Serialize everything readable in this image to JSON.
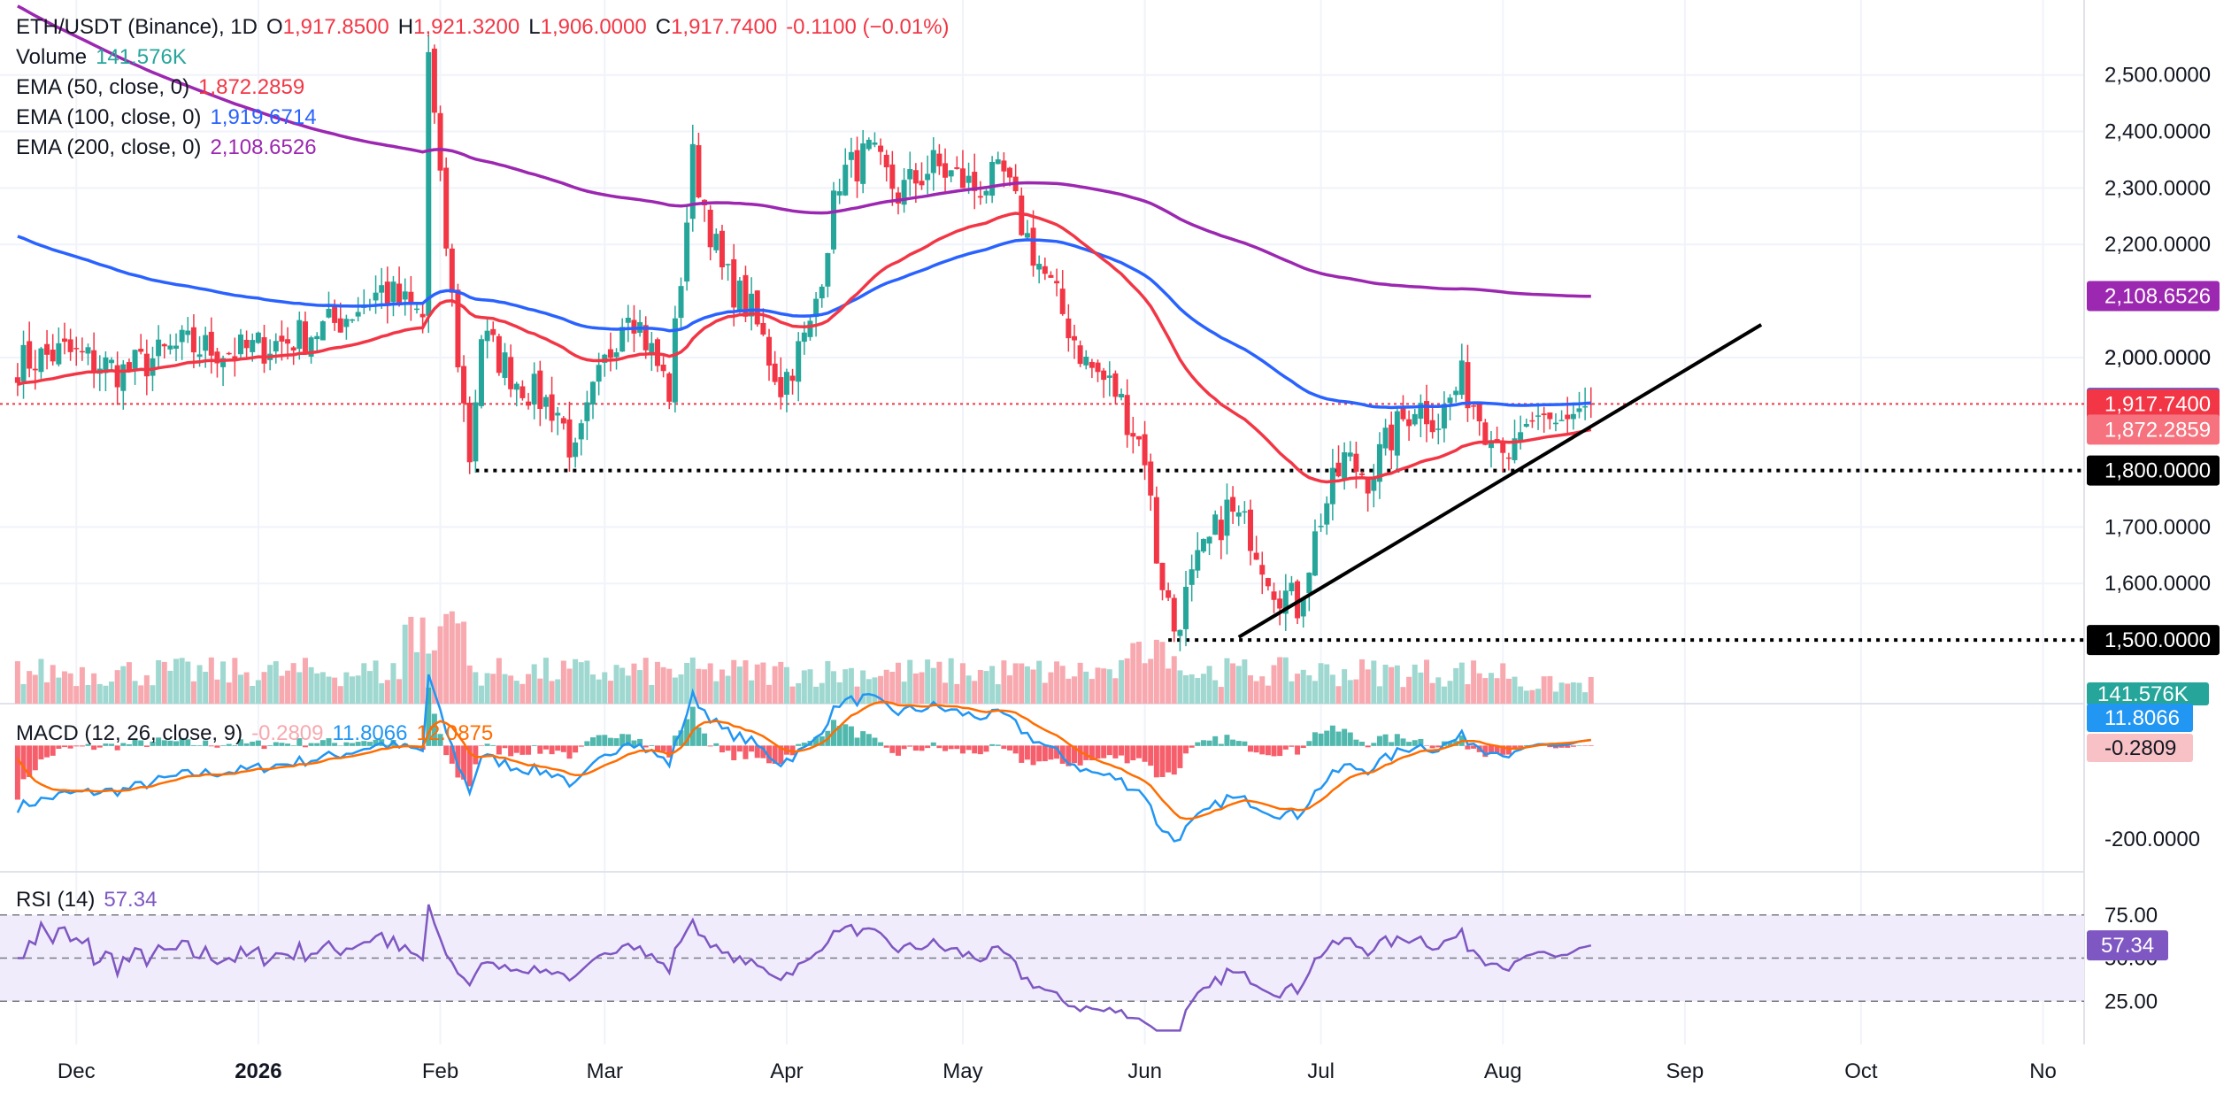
{
  "header": {
    "symbol": "ETH/USDT (Binance), 1D",
    "open_label": "O",
    "open": "1,917.8500",
    "high_label": "H",
    "high": "1,921.3200",
    "low_label": "L",
    "low": "1,906.0000",
    "close_label": "C",
    "close": "1,917.7400",
    "change": "-0.1100 (−0.01%)"
  },
  "legend": {
    "volume_label": "Volume",
    "volume_value": "141.576K",
    "ema50_label": "EMA (50, close, 0)",
    "ema50_value": "1,872.2859",
    "ema100_label": "EMA (100, close, 0)",
    "ema100_value": "1,919.6714",
    "ema200_label": "EMA (200, close, 0)",
    "ema200_value": "2,108.6526"
  },
  "macd_legend": {
    "label": "MACD (12, 26, close, 9)",
    "hist": "-0.2809",
    "macd": "11.8066",
    "signal": "12.0875"
  },
  "rsi_legend": {
    "label": "RSI (14)",
    "value": "57.34"
  },
  "colors": {
    "up": "#26a69a",
    "down": "#f23645",
    "vol_up": "#9fd8d0",
    "vol_down": "#f7a9af",
    "ema50": "#f23645",
    "ema100": "#2962ff",
    "ema200": "#9c27b0",
    "macd": "#2196f3",
    "signal": "#ff6d00",
    "rsi": "#7e57c2",
    "rsi_band": "#f1ecfb",
    "trendline": "#000000"
  },
  "chart_data": {
    "type": "candlestick",
    "ylim": [
      1450,
      2570
    ],
    "price_ticks": [
      {
        "v": 2500,
        "label": "2,500.0000"
      },
      {
        "v": 2400,
        "label": "2,400.0000"
      },
      {
        "v": 2300,
        "label": "2,300.0000"
      },
      {
        "v": 2200,
        "label": "2,200.0000"
      },
      {
        "v": 2000,
        "label": "2,000.0000"
      },
      {
        "v": 1700,
        "label": "1,700.0000"
      },
      {
        "v": 1600,
        "label": "1,600.0000"
      }
    ],
    "date_ticks": [
      {
        "t": 10,
        "label": "Dec",
        "bold": false
      },
      {
        "t": 41,
        "label": "2026",
        "bold": true
      },
      {
        "t": 72,
        "label": "Feb",
        "bold": false
      },
      {
        "t": 100,
        "label": "Mar",
        "bold": false
      },
      {
        "t": 131,
        "label": "Apr",
        "bold": false
      },
      {
        "t": 161,
        "label": "May",
        "bold": false
      },
      {
        "t": 192,
        "label": "Jun",
        "bold": false
      },
      {
        "t": 222,
        "label": "Jul",
        "bold": false
      },
      {
        "t": 253,
        "label": "Aug",
        "bold": false
      },
      {
        "t": 284,
        "label": "Sep",
        "bold": false
      },
      {
        "t": 314,
        "label": "Oct",
        "bold": false
      },
      {
        "t": 345,
        "label": "No",
        "bold": false
      }
    ],
    "levels": [
      {
        "v": 1800,
        "label": "1,800.0000",
        "t_start": 78
      },
      {
        "v": 1500,
        "label": "1,500.0000",
        "t_start": 196
      }
    ],
    "trendline": {
      "t1": 208,
      "p1": 1505,
      "t2": 297,
      "p2": 2058
    },
    "badges": [
      {
        "v": 2108.6526,
        "label": "2,108.6526",
        "color": "#9c27b0"
      },
      {
        "v": 2000,
        "label": "2,000.0000",
        "color": "none"
      },
      {
        "v": 1919.6714,
        "label": "1,919.6714",
        "color": "#2962ff"
      },
      {
        "v": 1917.74,
        "label": "1,917.7400",
        "color": "#f23645"
      },
      {
        "v": 1872.2859,
        "label": "1,872.2859",
        "color": "#f5727e"
      },
      {
        "v": 1800,
        "label": "1,800.0000",
        "color": "#000000"
      },
      {
        "v": 1500,
        "label": "1,500.0000",
        "color": "#000000"
      }
    ],
    "volume_badge": "141.576K",
    "macd_badges": [
      {
        "label": "11.8066",
        "color": "#2196f3"
      },
      {
        "label": "-0.2809",
        "color": "#f7c1c5"
      }
    ],
    "macd_ticks": [
      {
        "v": -200,
        "label": "-200.0000"
      }
    ],
    "macd_ylim": [
      -260,
      80
    ],
    "rsi_ticks": [
      {
        "v": 75,
        "label": "75.00"
      },
      {
        "v": 50,
        "label": "50.00"
      },
      {
        "v": 25,
        "label": "25.00"
      }
    ],
    "rsi_badge": "57.34",
    "anchors": [
      [
        0,
        1990
      ],
      [
        8,
        2010
      ],
      [
        18,
        1975
      ],
      [
        28,
        2020
      ],
      [
        38,
        2010
      ],
      [
        46,
        2030
      ],
      [
        54,
        2060
      ],
      [
        62,
        2120
      ],
      [
        69,
        2070
      ],
      [
        70,
        2540
      ],
      [
        72,
        2300
      ],
      [
        75,
        2000
      ],
      [
        77,
        1825
      ],
      [
        79,
        2040
      ],
      [
        85,
        1960
      ],
      [
        92,
        1905
      ],
      [
        95,
        1820
      ],
      [
        98,
        1930
      ],
      [
        104,
        2100
      ],
      [
        111,
        1940
      ],
      [
        115,
        2350
      ],
      [
        120,
        2150
      ],
      [
        125,
        2080
      ],
      [
        130,
        1950
      ],
      [
        135,
        2050
      ],
      [
        140,
        2320
      ],
      [
        145,
        2360
      ],
      [
        150,
        2290
      ],
      [
        156,
        2340
      ],
      [
        163,
        2300
      ],
      [
        168,
        2320
      ],
      [
        172,
        2210
      ],
      [
        177,
        2100
      ],
      [
        182,
        1990
      ],
      [
        187,
        1940
      ],
      [
        192,
        1830
      ],
      [
        194,
        1650
      ],
      [
        197,
        1520
      ],
      [
        201,
        1630
      ],
      [
        206,
        1730
      ],
      [
        210,
        1690
      ],
      [
        214,
        1600
      ],
      [
        218,
        1560
      ],
      [
        222,
        1720
      ],
      [
        226,
        1820
      ],
      [
        230,
        1790
      ],
      [
        234,
        1860
      ],
      [
        238,
        1920
      ],
      [
        242,
        1890
      ],
      [
        246,
        1960
      ],
      [
        250,
        1880
      ],
      [
        254,
        1830
      ],
      [
        258,
        1890
      ],
      [
        262,
        1880
      ],
      [
        266,
        1910
      ],
      [
        268,
        1917.74
      ]
    ]
  }
}
